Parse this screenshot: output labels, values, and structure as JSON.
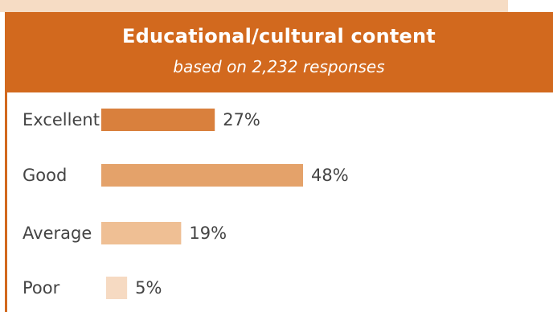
{
  "colors": {
    "header_bg": "#d2691e",
    "page_peach": "#f6dcc4",
    "label_text": "#444444"
  },
  "chart_data": {
    "type": "bar",
    "orientation": "horizontal",
    "title": "Educational/cultural content",
    "subtitle": "based on 2,232 responses",
    "categories": [
      "Excellent",
      "Good",
      "Average",
      "Poor"
    ],
    "values": [
      27,
      48,
      19,
      5
    ],
    "value_labels": [
      "27%",
      "48%",
      "19%",
      "5%"
    ],
    "bar_colors": [
      "#d9803d",
      "#e4a26a",
      "#efbf94",
      "#f6dac2"
    ],
    "unit": "%",
    "xlim": [
      0,
      100
    ],
    "grid": false,
    "legend": "none"
  }
}
